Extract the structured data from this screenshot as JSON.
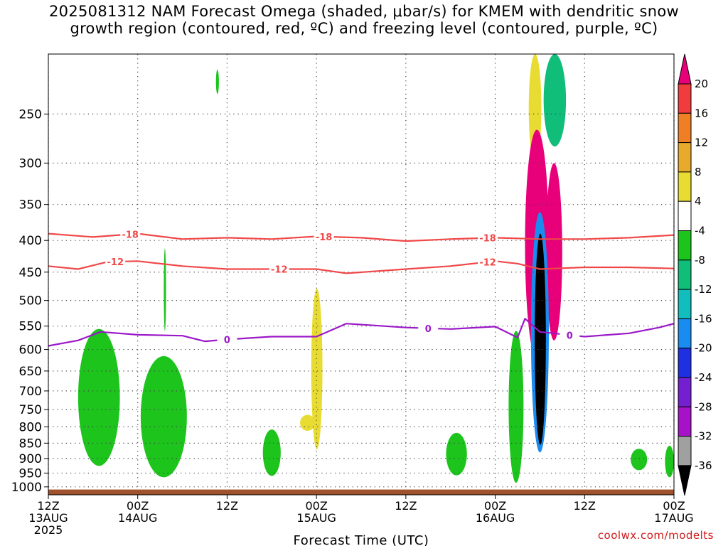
{
  "title": {
    "line1": "2025081312 NAM Forecast Omega (shaded, μbar/s) for KMEM with dendritic snow",
    "line2": "growth region (contoured, red, ºC) and freezing level (contoured, purple, ºC)"
  },
  "credit": "coolwx.com/modelts",
  "chart_data": {
    "type": "time-height cross section",
    "xlabel": "Forecast Time (UTC)",
    "x_ticks": [
      {
        "hours": 0,
        "line1": "12Z",
        "line2": "13AUG",
        "line3": "2025"
      },
      {
        "hours": 12,
        "line1": "00Z",
        "line2": "14AUG"
      },
      {
        "hours": 24,
        "line1": "12Z"
      },
      {
        "hours": 36,
        "line1": "00Z",
        "line2": "15AUG"
      },
      {
        "hours": 48,
        "line1": "12Z"
      },
      {
        "hours": 60,
        "line1": "00Z",
        "line2": "16AUG"
      },
      {
        "hours": 72,
        "line1": "12Z"
      },
      {
        "hours": 84,
        "line1": "00Z",
        "line2": "17AUG"
      }
    ],
    "xlim_hours": [
      0,
      84
    ],
    "ylabel": "",
    "y_scale": "log",
    "ylim_hPa": [
      1030,
      200
    ],
    "y_ticks_hPa": [
      250,
      300,
      350,
      400,
      450,
      500,
      550,
      600,
      650,
      700,
      750,
      800,
      850,
      900,
      950,
      1000
    ],
    "grid": "dotted",
    "colorbar": {
      "placement": "right",
      "units": "μbar/s",
      "labels": [
        "20",
        "16",
        "12",
        "8",
        "4",
        "-4",
        "-8",
        "-12",
        "-16",
        "-20",
        "-24",
        "-28",
        "-32",
        "-36"
      ],
      "bins": [
        {
          "range": "> 20",
          "color": "#e8007a"
        },
        {
          "range": "16 to 20",
          "color": "#f03c3c"
        },
        {
          "range": "12 to 16",
          "color": "#ee7f25"
        },
        {
          "range": "8 to 12",
          "color": "#e8aa2c"
        },
        {
          "range": "4 to 8",
          "color": "#e8dc32"
        },
        {
          "range": "-4 to 4",
          "color": "#ffffff"
        },
        {
          "range": "-8 to -4",
          "color": "#1cc41c"
        },
        {
          "range": "-12 to -8",
          "color": "#10bd79"
        },
        {
          "range": "-16 to -12",
          "color": "#12bdbd"
        },
        {
          "range": "-20 to -16",
          "color": "#1a8cf0"
        },
        {
          "range": "-24 to -20",
          "color": "#1e30e0"
        },
        {
          "range": "-28 to -24",
          "color": "#7420d0"
        },
        {
          "range": "-32 to -28",
          "color": "#a612c8"
        },
        {
          "range": "-36 to -32",
          "color": "#a0a0a0"
        },
        {
          "range": "< -36",
          "color": "#000000"
        }
      ]
    },
    "ground_color": "#a0522d",
    "contours": [
      {
        "label": "-18",
        "color": "#f04848",
        "points": [
          [
            0,
            390
          ],
          [
            6,
            395
          ],
          [
            12,
            390
          ],
          [
            18,
            398
          ],
          [
            24,
            396
          ],
          [
            30,
            398
          ],
          [
            36,
            394
          ],
          [
            42,
            396
          ],
          [
            48,
            401
          ],
          [
            54,
            398
          ],
          [
            60,
            396
          ],
          [
            66,
            398
          ],
          [
            72,
            398
          ],
          [
            78,
            396
          ],
          [
            84,
            392
          ]
        ],
        "label_hours": [
          11,
          37,
          59
        ]
      },
      {
        "label": "-12",
        "color": "#f04848",
        "points": [
          [
            0,
            440
          ],
          [
            4,
            445
          ],
          [
            8,
            433
          ],
          [
            12,
            432
          ],
          [
            18,
            440
          ],
          [
            24,
            445
          ],
          [
            30,
            445
          ],
          [
            36,
            445
          ],
          [
            40,
            452
          ],
          [
            48,
            445
          ],
          [
            54,
            440
          ],
          [
            60,
            432
          ],
          [
            63,
            436
          ],
          [
            66,
            445
          ],
          [
            72,
            442
          ],
          [
            78,
            442
          ],
          [
            84,
            444
          ]
        ],
        "label_hours": [
          9,
          31,
          59
        ]
      },
      {
        "label": "0",
        "color": "#9b18c8",
        "points": [
          [
            0,
            592
          ],
          [
            4,
            580
          ],
          [
            7,
            562
          ],
          [
            12,
            568
          ],
          [
            18,
            570
          ],
          [
            21,
            582
          ],
          [
            24,
            578
          ],
          [
            30,
            572
          ],
          [
            36,
            572
          ],
          [
            40,
            545
          ],
          [
            48,
            553
          ],
          [
            54,
            556
          ],
          [
            60,
            551
          ],
          [
            63,
            574
          ],
          [
            64,
            535
          ],
          [
            66,
            562
          ],
          [
            72,
            572
          ],
          [
            78,
            565
          ],
          [
            82,
            553
          ],
          [
            84,
            545
          ]
        ],
        "label_hours": [
          24,
          51,
          70
        ]
      }
    ],
    "shaded_features": [
      {
        "band": "-8 to -4",
        "hours": [
          22.5,
          22.9
        ],
        "hPa": [
          212,
          232
        ]
      },
      {
        "band": "-8 to -4",
        "hours": [
          15.5,
          15.8
        ],
        "hPa": [
          412,
          560
        ]
      },
      {
        "band": "-8 to -4",
        "hours": [
          4.0,
          9.6
        ],
        "hPa": [
          556,
          925
        ]
      },
      {
        "band": "-8 to -4",
        "hours": [
          12.4,
          18.6
        ],
        "hPa": [
          615,
          965
        ]
      },
      {
        "band": "-8 to -4",
        "hours": [
          28.8,
          31.2
        ],
        "hPa": [
          808,
          960
        ]
      },
      {
        "band": "4 to 8",
        "hours": [
          35.3,
          36.8
        ],
        "hPa": [
          478,
          870
        ]
      },
      {
        "band": "4 to 8",
        "hours": [
          33.8,
          35.8
        ],
        "hPa": [
          765,
          812
        ]
      },
      {
        "band": "-8 to -4",
        "hours": [
          53.4,
          56.2
        ],
        "hPa": [
          818,
          958
        ]
      },
      {
        "band": "-8 to -4",
        "hours": [
          78.2,
          80.4
        ],
        "hPa": [
          868,
          940
        ]
      },
      {
        "band": "-8 to -4",
        "hours": [
          82.8,
          84
        ],
        "hPa": [
          858,
          965
        ]
      },
      {
        "band": "4 to 8",
        "hours": [
          64.5,
          66.2
        ],
        "hPa": [
          200,
          300
        ]
      },
      {
        "band": "-8 to -4",
        "hours": [
          61.8,
          63.8
        ],
        "hPa": [
          560,
          985
        ]
      },
      {
        "band": "> 20",
        "hours": [
          64.0,
          67.2
        ],
        "hPa": [
          265,
          620
        ]
      },
      {
        "band": "> 20",
        "hours": [
          66.8,
          69.0
        ],
        "hPa": [
          300,
          580
        ]
      },
      {
        "band": "-12 to -8",
        "hours": [
          66.5,
          69.5
        ],
        "hPa": [
          200,
          282
        ]
      },
      {
        "band": "-20 to -16",
        "hours": [
          64.8,
          67.2
        ],
        "hPa": [
          360,
          880
        ]
      },
      {
        "band": "< -36",
        "hours": [
          65.3,
          66.8
        ],
        "hPa": [
          390,
          855
        ]
      }
    ]
  }
}
